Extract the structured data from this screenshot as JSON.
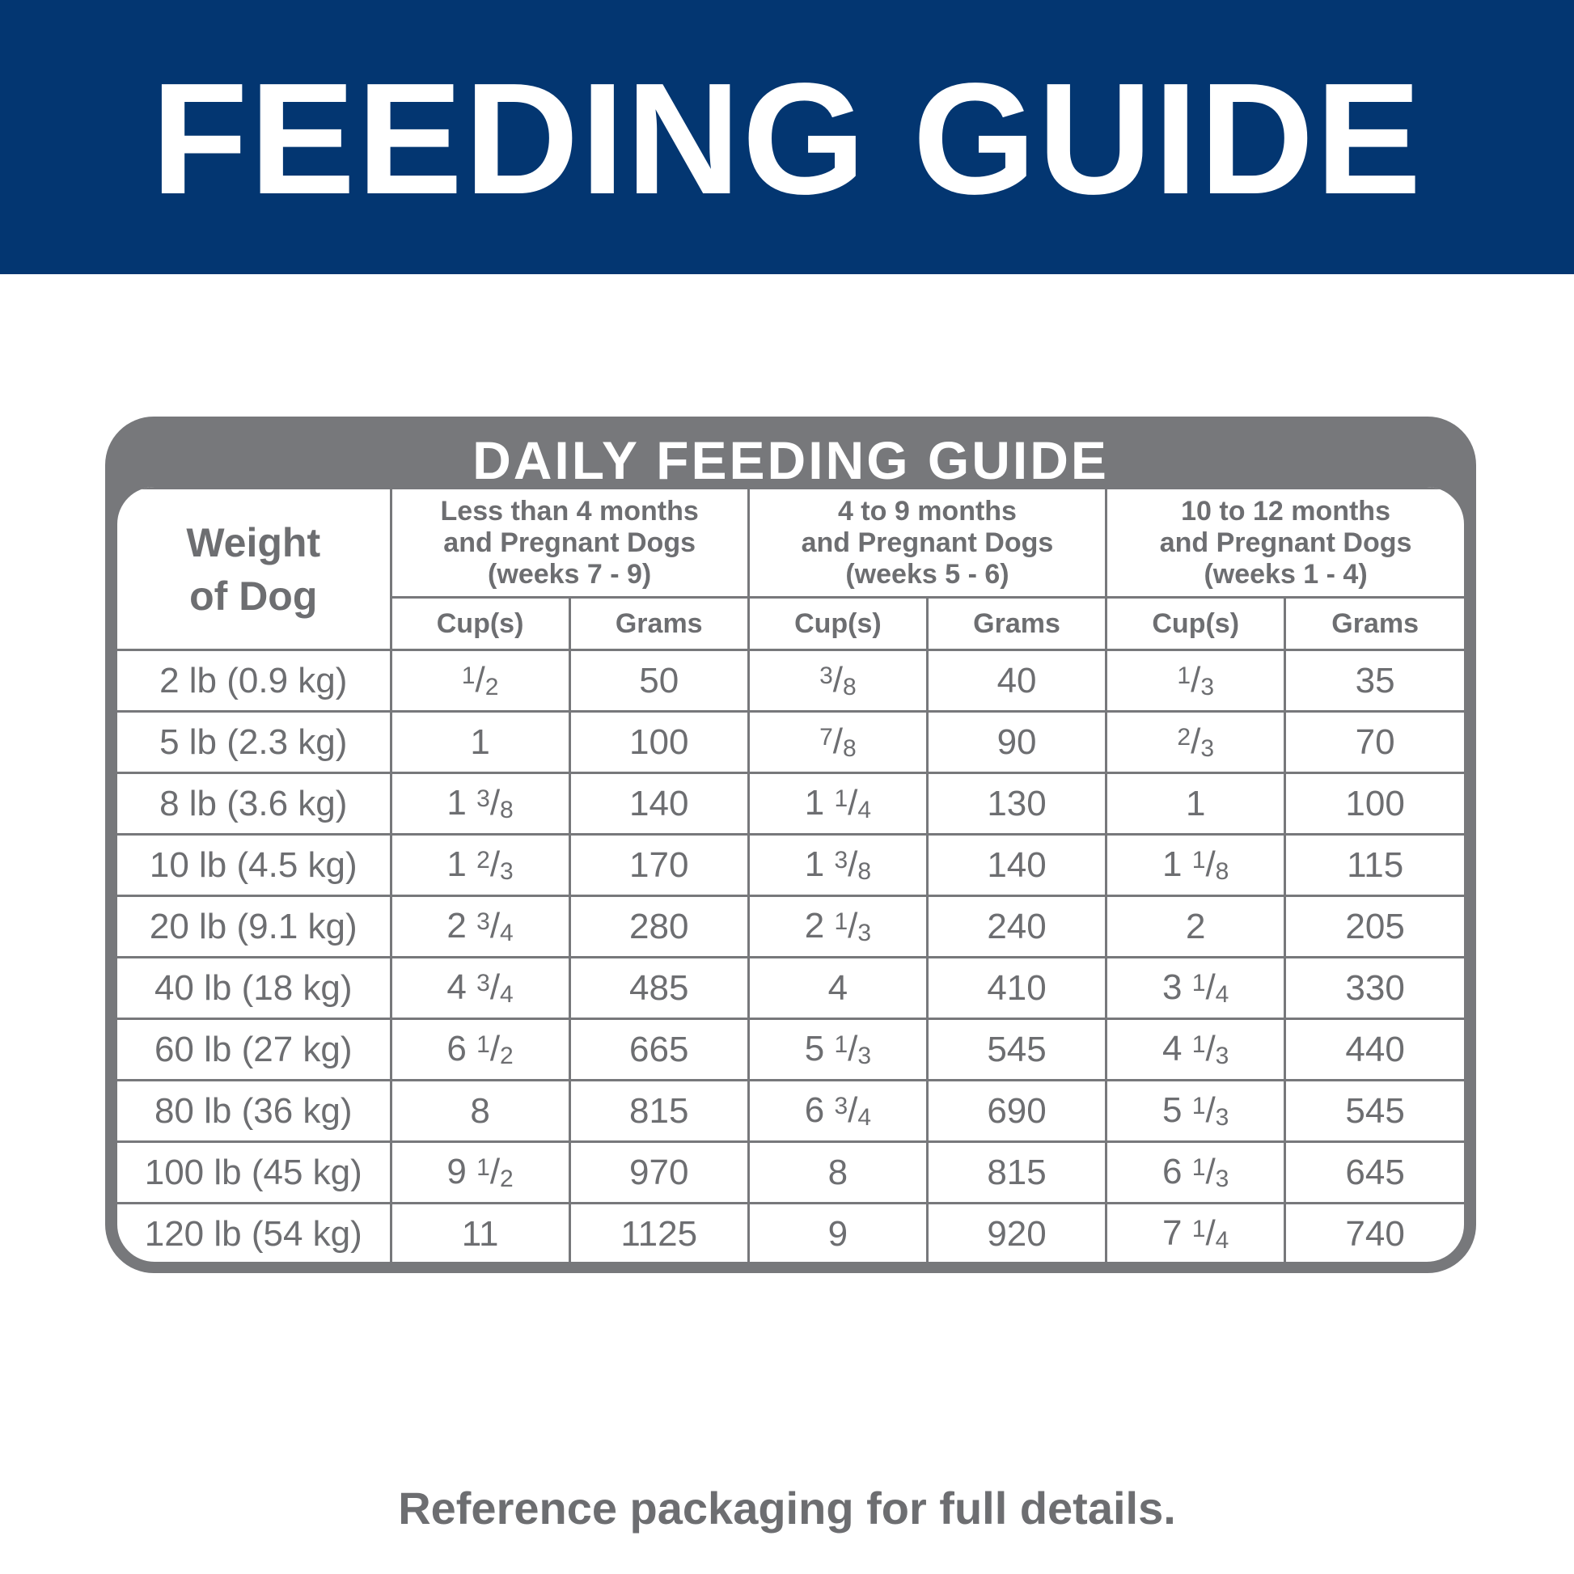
{
  "header": {
    "title": "FEEDING GUIDE"
  },
  "table": {
    "title": "DAILY FEEDING GUIDE",
    "weight_header": [
      "Weight",
      "of Dog"
    ],
    "groups": [
      {
        "lines": [
          "Less than 4 months",
          "and Pregnant Dogs",
          "(weeks 7 - 9)"
        ],
        "columns": [
          "Cup(s)",
          "Grams"
        ]
      },
      {
        "lines": [
          "4 to 9 months",
          "and Pregnant Dogs",
          "(weeks 5 - 6)"
        ],
        "columns": [
          "Cup(s)",
          "Grams"
        ]
      },
      {
        "lines": [
          "10 to 12 months",
          "and Pregnant Dogs",
          "(weeks 1 - 4)"
        ],
        "columns": [
          "Cup(s)",
          "Grams"
        ]
      }
    ],
    "rows": [
      [
        "2 lb (0.9 kg)",
        "1/2",
        50,
        "3/8",
        40,
        "1/3",
        35
      ],
      [
        "5 lb (2.3 kg)",
        "1",
        100,
        "7/8",
        90,
        "2/3",
        70
      ],
      [
        "8 lb (3.6 kg)",
        "1 3/8",
        140,
        "1 1/4",
        130,
        "1",
        100
      ],
      [
        "10 lb (4.5 kg)",
        "1 2/3",
        170,
        "1 3/8",
        140,
        "1 1/8",
        115
      ],
      [
        "20 lb (9.1 kg)",
        "2 3/4",
        280,
        "2 1/3",
        240,
        "2",
        205
      ],
      [
        "40 lb (18 kg)",
        "4 3/4",
        485,
        "4",
        410,
        "3 1/4",
        330
      ],
      [
        "60 lb (27 kg)",
        "6 1/2",
        665,
        "5 1/3",
        545,
        "4 1/3",
        440
      ],
      [
        "80 lb (36 kg)",
        "8",
        815,
        "6 3/4",
        690,
        "5 1/3",
        545
      ],
      [
        "100 lb (45 kg)",
        "9 1/2",
        970,
        "8",
        815,
        "6 1/3",
        645
      ],
      [
        "120 lb (54 kg)",
        "11",
        1125,
        "9",
        920,
        "7 1/4",
        740
      ]
    ]
  },
  "footer": {
    "note": "Reference packaging for full details."
  }
}
